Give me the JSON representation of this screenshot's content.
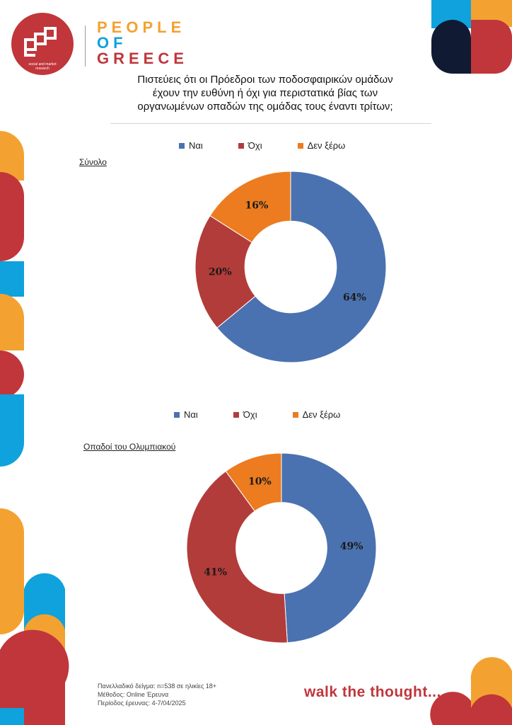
{
  "brand": {
    "name_lines": [
      "PEOPLE",
      "OF",
      "GREECE"
    ],
    "logo_subtitle": "social and market research",
    "tagline": "walk the thought...",
    "colors": {
      "red": "#c0363b",
      "orange": "#f3a231",
      "blue": "#0fa2dc",
      "navy": "#101a33"
    }
  },
  "question": {
    "line1": "Πιστεύεις ότι οι Πρόεδροι των ποδοσφαιρικών ομάδων",
    "line2": "έχουν την ευθύνη ή όχι για περιστατικά βίας των",
    "line3": "οργανωμένων οπαδών της ομάδας τους έναντι τρίτων;"
  },
  "chart_data": [
    {
      "type": "pie",
      "subtype": "donut",
      "title": "Σύνολο",
      "categories": [
        "Ναι",
        "Όχι",
        "Δεν ξέρω"
      ],
      "values": [
        64,
        20,
        16
      ],
      "unit": "%",
      "colors": [
        "#4a72b0",
        "#b23c3a",
        "#ec7c1f"
      ],
      "legend_position": "top"
    },
    {
      "type": "pie",
      "subtype": "donut",
      "title": "Οπαδοί του Ολυμπιακού",
      "categories": [
        "Ναι",
        "Όχι",
        "Δεν ξέρω"
      ],
      "values": [
        49,
        41,
        10
      ],
      "unit": "%",
      "colors": [
        "#4a72b0",
        "#b23c3a",
        "#ec7c1f"
      ],
      "legend_position": "top"
    }
  ],
  "footer": {
    "sample": "Πανελλαδικό δείγμα: n=538 σε ηλικίες 18+",
    "method": "Μέθοδος: Online Έρευνα",
    "period": "Περίοδος έρευνας: 4-7/04/2025"
  }
}
